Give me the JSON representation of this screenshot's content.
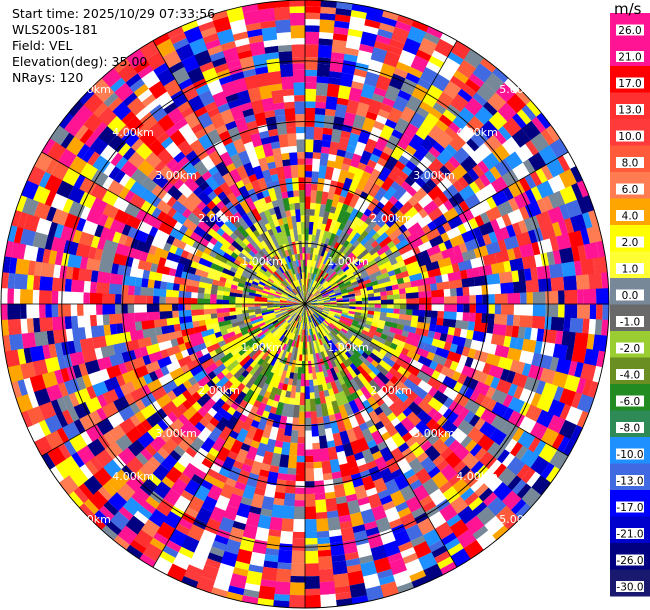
{
  "header": {
    "start_time": "Start time: 2025/10/29 07:33:56",
    "instrument": "WLS200s-181",
    "field": "Field: VEL",
    "elevation": "Elevation(deg): 35.00",
    "nrays": "NRays: 120"
  },
  "chart_data": {
    "type": "heatmap",
    "projection": "polar-ppi",
    "field": "VEL",
    "units": "m/s",
    "n_rays": 120,
    "max_range_km": 5.0,
    "range_rings_km": [
      1.0,
      2.0,
      3.0,
      4.0,
      5.0
    ],
    "range_ring_labels": [
      "1.00km",
      "2.00km",
      "3.00km",
      "4.00km",
      "5.00km"
    ],
    "colorbar": {
      "unit_label": "m/s",
      "tick_labels": [
        "26.0",
        "21.0",
        "17.0",
        "13.0",
        "10.0",
        "8.0",
        "6.0",
        "4.0",
        "2.0",
        "1.0",
        "0.0",
        "-1.0",
        "-2.0",
        "-4.0",
        "-6.0",
        "-8.0",
        "-10.0",
        "-13.0",
        "-17.0",
        "-21.0",
        "-26.0",
        "-30.0"
      ],
      "colors": [
        "#ff1493",
        "#ff1493",
        "#ff0000",
        "#ff3030",
        "#ff3a3a",
        "#ff5a3a",
        "#ff7b52",
        "#ffa500",
        "#ffff00",
        "#ffff33",
        "#778899",
        "#696969",
        "#9acd32",
        "#6b8e23",
        "#228b22",
        "#2e8b57",
        "#1e90ff",
        "#4169e1",
        "#0000ff",
        "#0000cd",
        "#000080",
        "#191970"
      ]
    }
  }
}
